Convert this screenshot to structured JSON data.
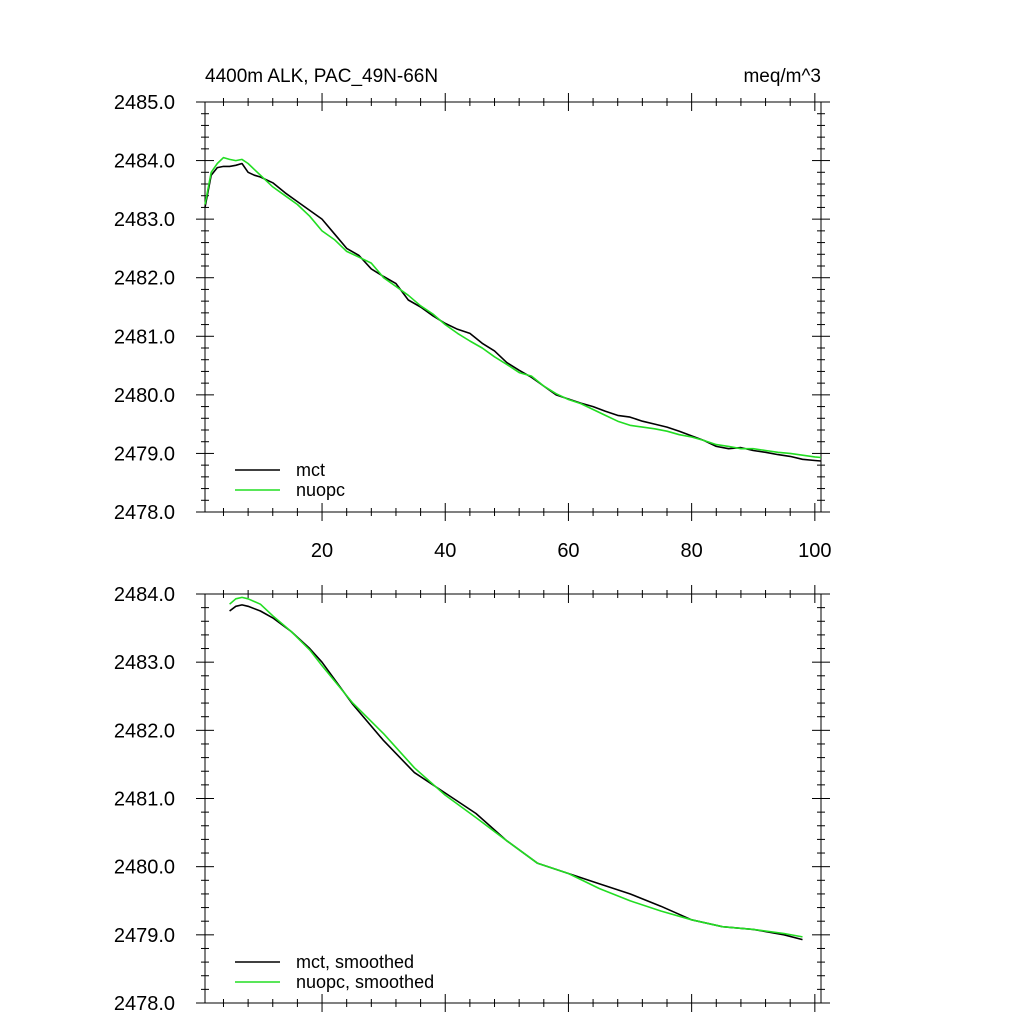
{
  "title_left": "4400m ALK, PAC_49N-66N",
  "title_right": "meq/m^3",
  "colors": {
    "mct": "#000000",
    "nuopc": "#22dd22",
    "axis": "#000000"
  },
  "chart_data": [
    {
      "type": "line",
      "title": "4400m ALK, PAC_49N-66N",
      "units": "meq/m^3",
      "xlim": [
        1,
        101
      ],
      "ylim": [
        2478.0,
        2485.0
      ],
      "xticks": [
        20,
        40,
        60,
        80,
        100
      ],
      "xtick_labels": [
        "20",
        "40",
        "60",
        "80",
        "100"
      ],
      "yticks": [
        2478.0,
        2479.0,
        2480.0,
        2481.0,
        2482.0,
        2483.0,
        2484.0,
        2485.0
      ],
      "ytick_labels": [
        "2478.0",
        "2479.0",
        "2480.0",
        "2481.0",
        "2482.0",
        "2483.0",
        "2484.0",
        "2485.0"
      ],
      "legend_position": "bottom-left",
      "series": [
        {
          "name": "mct",
          "color": "#000000",
          "x": [
            1,
            2,
            3,
            4,
            5,
            6,
            7,
            8,
            9,
            10,
            12,
            14,
            16,
            18,
            20,
            22,
            24,
            26,
            28,
            30,
            32,
            34,
            36,
            38,
            40,
            42,
            44,
            46,
            48,
            50,
            52,
            54,
            56,
            58,
            60,
            62,
            64,
            66,
            68,
            70,
            72,
            74,
            76,
            78,
            80,
            82,
            84,
            86,
            88,
            90,
            92,
            94,
            96,
            98,
            100,
            101
          ],
          "y": [
            2483.2,
            2483.75,
            2483.88,
            2483.9,
            2483.9,
            2483.92,
            2483.95,
            2483.8,
            2483.75,
            2483.72,
            2483.62,
            2483.45,
            2483.3,
            2483.15,
            2483.0,
            2482.75,
            2482.5,
            2482.38,
            2482.15,
            2482.02,
            2481.9,
            2481.62,
            2481.5,
            2481.35,
            2481.22,
            2481.12,
            2481.05,
            2480.88,
            2480.75,
            2480.55,
            2480.42,
            2480.3,
            2480.15,
            2480.0,
            2479.93,
            2479.86,
            2479.8,
            2479.72,
            2479.65,
            2479.62,
            2479.55,
            2479.5,
            2479.45,
            2479.38,
            2479.3,
            2479.22,
            2479.12,
            2479.08,
            2479.1,
            2479.05,
            2479.02,
            2478.98,
            2478.95,
            2478.9,
            2478.88,
            2478.87
          ]
        },
        {
          "name": "nuopc",
          "color": "#22dd22",
          "x": [
            1,
            2,
            3,
            4,
            5,
            6,
            7,
            8,
            9,
            10,
            12,
            14,
            16,
            18,
            20,
            22,
            24,
            26,
            28,
            30,
            32,
            34,
            36,
            38,
            40,
            42,
            44,
            46,
            48,
            50,
            52,
            54,
            56,
            58,
            60,
            62,
            64,
            66,
            68,
            70,
            72,
            74,
            76,
            78,
            80,
            82,
            84,
            86,
            88,
            90,
            92,
            94,
            96,
            98,
            100,
            101
          ],
          "y": [
            2483.25,
            2483.8,
            2483.95,
            2484.05,
            2484.02,
            2484.0,
            2484.02,
            2483.95,
            2483.85,
            2483.75,
            2483.55,
            2483.4,
            2483.25,
            2483.05,
            2482.8,
            2482.65,
            2482.45,
            2482.35,
            2482.25,
            2482.0,
            2481.85,
            2481.7,
            2481.52,
            2481.38,
            2481.2,
            2481.05,
            2480.92,
            2480.8,
            2480.65,
            2480.52,
            2480.38,
            2480.32,
            2480.15,
            2480.02,
            2479.92,
            2479.85,
            2479.75,
            2479.65,
            2479.55,
            2479.48,
            2479.45,
            2479.42,
            2479.38,
            2479.32,
            2479.28,
            2479.22,
            2479.15,
            2479.12,
            2479.08,
            2479.08,
            2479.05,
            2479.02,
            2479.0,
            2478.97,
            2478.94,
            2478.93
          ]
        }
      ]
    },
    {
      "type": "line",
      "title": "",
      "xlim": [
        1,
        101
      ],
      "ylim": [
        2478.0,
        2484.0
      ],
      "xticks": [
        20,
        40,
        60,
        80,
        100
      ],
      "xtick_labels": [],
      "yticks": [
        2478.0,
        2479.0,
        2480.0,
        2481.0,
        2482.0,
        2483.0,
        2484.0
      ],
      "ytick_labels": [
        "2478.0",
        "2479.0",
        "2480.0",
        "2481.0",
        "2482.0",
        "2483.0",
        "2484.0"
      ],
      "legend_position": "bottom-left",
      "series": [
        {
          "name": "mct, smoothed",
          "color": "#000000",
          "x": [
            5,
            6,
            7,
            8,
            10,
            12,
            15,
            18,
            20,
            25,
            30,
            35,
            40,
            45,
            50,
            55,
            60,
            65,
            70,
            75,
            80,
            85,
            90,
            95,
            98
          ],
          "y": [
            2483.75,
            2483.82,
            2483.84,
            2483.82,
            2483.75,
            2483.65,
            2483.45,
            2483.2,
            2483.0,
            2482.38,
            2481.85,
            2481.38,
            2481.08,
            2480.78,
            2480.38,
            2480.05,
            2479.9,
            2479.75,
            2479.6,
            2479.42,
            2479.22,
            2479.12,
            2479.08,
            2479.0,
            2478.93
          ]
        },
        {
          "name": "nuopc, smoothed",
          "color": "#22dd22",
          "x": [
            5,
            6,
            7,
            8,
            10,
            12,
            15,
            18,
            20,
            25,
            30,
            35,
            40,
            45,
            50,
            55,
            60,
            65,
            70,
            75,
            80,
            85,
            90,
            95,
            98
          ],
          "y": [
            2483.85,
            2483.93,
            2483.95,
            2483.93,
            2483.85,
            2483.68,
            2483.45,
            2483.18,
            2482.95,
            2482.4,
            2481.95,
            2481.45,
            2481.05,
            2480.72,
            2480.38,
            2480.05,
            2479.9,
            2479.68,
            2479.5,
            2479.35,
            2479.22,
            2479.12,
            2479.08,
            2479.02,
            2478.97
          ]
        }
      ]
    }
  ]
}
